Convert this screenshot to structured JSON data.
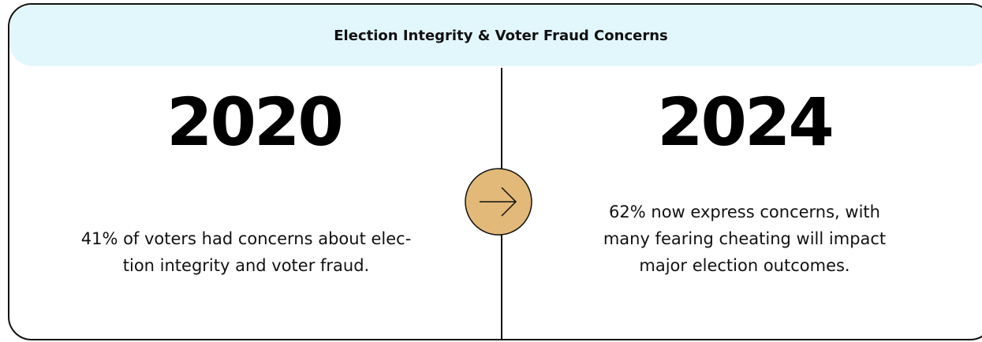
{
  "header": {
    "title": "Election Integrity & Voter Fraud Concerns"
  },
  "columns": [
    {
      "year": "2020",
      "text": [
        "41% of voters had concerns about elec-",
        "tion integrity and voter fraud."
      ]
    },
    {
      "year": "2024",
      "text": [
        "62% now express concerns, with",
        "many fearing cheating will impact",
        "major election outcomes."
      ]
    }
  ]
}
